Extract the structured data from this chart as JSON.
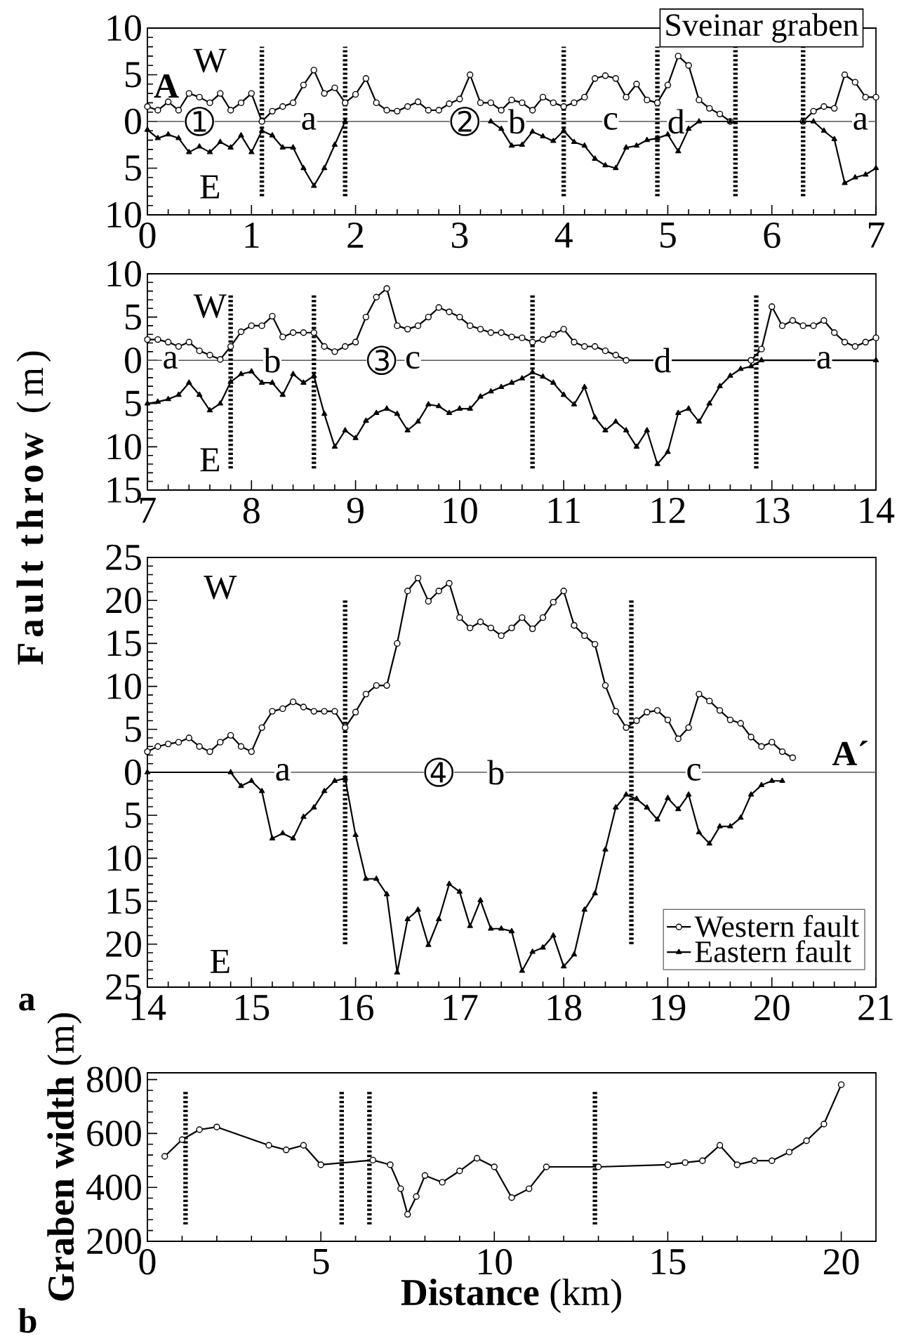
{
  "chart_data": [
    {
      "type": "line",
      "title": "Sveinar graben",
      "x": [
        0,
        0.1,
        0.2,
        0.3,
        0.4,
        0.5,
        0.6,
        0.7,
        0.8,
        0.9,
        1.0,
        1.1,
        1.2,
        1.3,
        1.4,
        1.5,
        1.6,
        1.7,
        1.8,
        1.9,
        2.0,
        2.1,
        2.2,
        2.3,
        2.4,
        2.5,
        2.6,
        2.7,
        2.8,
        2.9,
        3.0,
        3.1,
        3.2,
        3.3,
        3.4,
        3.5,
        3.6,
        3.7,
        3.8,
        3.9,
        4.0,
        4.1,
        4.2,
        4.3,
        4.4,
        4.5,
        4.6,
        4.7,
        4.8,
        4.9,
        5.0,
        5.1,
        5.2,
        5.3,
        5.4,
        5.5,
        5.6,
        6.3,
        6.4,
        6.5,
        6.6,
        6.7,
        6.8,
        6.9,
        7.0
      ],
      "series": [
        {
          "color": "#000000",
          "marker": "circle",
          "values": [
            1.6,
            1.2,
            2.1,
            1.2,
            3.0,
            2.6,
            2.0,
            3.0,
            1.2,
            2.0,
            3.0,
            0,
            1.1,
            1.6,
            2.0,
            3.9,
            5.5,
            3.0,
            3.6,
            2.0,
            2.9,
            4.6,
            2.0,
            1.2,
            1.1,
            1.6,
            2.1,
            1.2,
            1.2,
            1.9,
            2.4,
            5.0,
            2.0,
            2.0,
            1.2,
            2.3,
            2.0,
            1.2,
            2.6,
            2.0,
            1.6,
            2.0,
            2.6,
            4.6,
            4.9,
            4.6,
            2.6,
            4.0,
            2.3,
            2.0,
            3.9,
            7.0,
            6.0,
            2.3,
            1.4,
            0.8,
            0,
            0,
            1.1,
            1.6,
            1.4,
            5.0,
            4.2,
            2.6,
            2.6
          ]
        },
        {
          "color": "#000000",
          "marker": "triangle",
          "x": [
            0,
            0.1,
            0.2,
            0.3,
            0.4,
            0.5,
            0.6,
            0.7,
            0.8,
            0.9,
            1.0,
            1.1,
            1.2,
            1.3,
            1.4,
            1.5,
            1.6,
            1.7,
            1.8,
            1.9,
            2.6,
            3.3,
            3.4,
            3.5,
            3.6,
            3.7,
            3.8,
            3.9,
            4.0,
            4.1,
            4.2,
            4.3,
            4.4,
            4.5,
            4.6,
            4.7,
            4.8,
            4.9,
            5.0,
            5.1,
            5.2,
            5.3,
            5.6,
            6.3,
            6.4,
            6.5,
            6.6,
            6.7,
            6.8,
            6.9,
            7.0
          ],
          "values": [
            -0.9,
            -1.8,
            -1.4,
            -1.8,
            -3.3,
            -2.7,
            -3.3,
            -2.2,
            -2.8,
            -1.5,
            -3.3,
            -1.0,
            -1.5,
            -2.8,
            -2.8,
            -5.0,
            -6.9,
            -5.0,
            -2.5,
            0,
            null,
            0,
            -0.8,
            -2.6,
            -2.5,
            -1.1,
            -1.6,
            -2.1,
            -1.0,
            -2.2,
            -2.6,
            -4.0,
            -4.7,
            -5.0,
            -2.8,
            -2.6,
            -2.0,
            -1.8,
            -1.4,
            -3.2,
            -0.8,
            0,
            0,
            0,
            0,
            -1.0,
            -1.9,
            -6.6,
            -6.0,
            -5.7,
            -5.0
          ]
        }
      ],
      "xlim": [
        0,
        7
      ],
      "xticks": [
        0,
        1,
        2,
        3,
        4,
        5,
        6,
        7
      ],
      "ylim": [
        -10,
        10
      ],
      "yticks": [
        {
          "value": -10,
          "label": "10"
        },
        {
          "value": -5,
          "label": "5"
        },
        0,
        5,
        10
      ],
      "ref_lines": [
        {
          "axis": "y",
          "value": 0,
          "color": "#555555",
          "line_style": "solid"
        },
        {
          "axis": "x",
          "value": 1.1,
          "color": "#000000",
          "line_style": "dotted"
        },
        {
          "axis": "x",
          "value": 1.9,
          "color": "#000000",
          "line_style": "dotted"
        },
        {
          "axis": "x",
          "value": 4.0,
          "color": "#000000",
          "line_style": "dotted"
        },
        {
          "axis": "x",
          "value": 4.9,
          "color": "#000000",
          "line_style": "dotted"
        },
        {
          "axis": "x",
          "value": 5.65,
          "color": "#000000",
          "line_style": "dotted"
        },
        {
          "axis": "x",
          "value": 6.3,
          "color": "#000000",
          "line_style": "dotted"
        }
      ],
      "annotations": [
        "**A**",
        "W",
        "E",
        {
          "text": "➀",
          "x": 0.5,
          "y": 0
        },
        {
          "text": "a",
          "x": 1.55,
          "y": 0
        },
        {
          "text": "➁",
          "x": 3.05,
          "y": 0
        },
        {
          "text": "b",
          "x": 3.55,
          "y": 0
        },
        {
          "text": "c",
          "x": 4.45,
          "y": 0
        },
        {
          "text": "d",
          "x": 5.08,
          "y": 0
        },
        {
          "text": "a",
          "x": 6.85,
          "y": 0
        }
      ]
    },
    {
      "type": "line",
      "ylabel": "**Fault throw** (m)",
      "x": [
        7.0,
        7.1,
        7.2,
        7.3,
        7.4,
        7.5,
        7.6,
        7.7,
        7.8,
        7.9,
        8.0,
        8.1,
        8.2,
        8.3,
        8.4,
        8.5,
        8.6,
        8.7,
        8.8,
        8.9,
        9.0,
        9.1,
        9.2,
        9.3,
        9.4,
        9.5,
        9.6,
        9.7,
        9.8,
        9.9,
        10.0,
        10.1,
        10.2,
        10.3,
        10.4,
        10.5,
        10.6,
        10.7,
        10.8,
        10.9,
        11.0,
        11.1,
        11.2,
        11.3,
        11.4,
        11.5,
        11.6,
        12.8,
        12.9,
        13.0,
        13.1,
        13.2,
        13.3,
        13.4,
        13.5,
        13.6,
        13.7,
        13.8,
        13.9,
        14.0
      ],
      "series": [
        {
          "color": "#000000",
          "marker": "circle",
          "values": [
            2.4,
            2.4,
            2.1,
            1.6,
            2.1,
            1.1,
            0.6,
            0.1,
            1.6,
            3.3,
            4.0,
            4.0,
            5.1,
            2.7,
            3.2,
            3.2,
            3.2,
            1.6,
            1.0,
            1.6,
            2.1,
            5.0,
            7.3,
            8.3,
            4.0,
            3.6,
            4.0,
            5.0,
            6.1,
            5.6,
            5.0,
            4.0,
            3.6,
            3.2,
            3.2,
            2.7,
            2.6,
            2.1,
            2.4,
            3.0,
            3.6,
            2.1,
            1.6,
            1.6,
            1.1,
            0.6,
            0,
            0,
            1.3,
            6.2,
            4.0,
            4.6,
            4.0,
            4.0,
            4.6,
            3.2,
            2.1,
            1.6,
            2.1,
            2.6
          ]
        },
        {
          "color": "#000000",
          "marker": "triangle",
          "x": [
            7.0,
            7.1,
            7.2,
            7.3,
            7.4,
            7.5,
            7.6,
            7.7,
            7.8,
            7.9,
            8.0,
            8.1,
            8.2,
            8.3,
            8.4,
            8.5,
            8.6,
            8.7,
            8.8,
            8.9,
            9.0,
            9.1,
            9.2,
            9.3,
            9.4,
            9.5,
            9.6,
            9.7,
            9.8,
            9.9,
            10.0,
            10.1,
            10.2,
            10.3,
            10.4,
            10.5,
            10.6,
            10.7,
            10.8,
            10.9,
            11.0,
            11.1,
            11.2,
            11.3,
            11.4,
            11.5,
            11.6,
            11.7,
            11.8,
            11.9,
            12.0,
            12.1,
            12.2,
            12.3,
            12.4,
            12.5,
            12.6,
            12.7,
            12.8,
            12.9,
            14.0
          ],
          "values": [
            -5.0,
            -4.8,
            -4.5,
            -4.0,
            -2.6,
            -4.0,
            -5.8,
            -5.0,
            -2.5,
            -1.6,
            -1.3,
            -2.6,
            -2.6,
            -4.0,
            -1.6,
            -2.6,
            -1.8,
            -6.2,
            -10.0,
            -8.1,
            -9.0,
            -7.0,
            -6.1,
            -5.6,
            -6.2,
            -8.1,
            -7.1,
            -5.1,
            -5.3,
            -6.1,
            -5.6,
            -5.6,
            -4.2,
            -3.6,
            -3.1,
            -2.6,
            -2.1,
            -1.4,
            -1.9,
            -2.6,
            -4.0,
            -5.1,
            -3.1,
            -6.6,
            -8.1,
            -7.1,
            -8.1,
            -10.0,
            -8.1,
            -12.0,
            -10.6,
            -6.1,
            -5.6,
            -7.1,
            -5.0,
            -3.0,
            -1.8,
            -1.0,
            -0.7,
            0,
            0
          ]
        }
      ],
      "xlim": [
        7,
        14
      ],
      "xticks": [
        7,
        8,
        9,
        10,
        11,
        12,
        13,
        14
      ],
      "ylim": [
        -15,
        10
      ],
      "yticks": [
        {
          "value": -15,
          "label": "15"
        },
        {
          "value": -10,
          "label": "10"
        },
        {
          "value": -5,
          "label": "5"
        },
        0,
        5,
        10
      ],
      "ref_lines": [
        {
          "axis": "y",
          "value": 0,
          "color": "#555555",
          "line_style": "solid"
        },
        {
          "axis": "x",
          "value": 7.8,
          "color": "#000000",
          "line_style": "dotted"
        },
        {
          "axis": "x",
          "value": 8.6,
          "color": "#000000",
          "line_style": "dotted"
        },
        {
          "axis": "x",
          "value": 10.7,
          "color": "#000000",
          "line_style": "dotted"
        },
        {
          "axis": "x",
          "value": 12.85,
          "color": "#000000",
          "line_style": "dotted"
        }
      ],
      "annotations": [
        "W",
        "E",
        {
          "text": "a",
          "x": 7.22,
          "y": 0
        },
        {
          "text": "b",
          "x": 8.2,
          "y": 0
        },
        {
          "text": "➂",
          "x": 9.25,
          "y": 0
        },
        {
          "text": "c",
          "x": 9.55,
          "y": 0
        },
        {
          "text": "d",
          "x": 11.95,
          "y": 0
        },
        {
          "text": "a",
          "x": 13.5,
          "y": 0
        }
      ]
    },
    {
      "type": "line",
      "legend": "bottom right",
      "x": [
        14.0,
        14.1,
        14.2,
        14.3,
        14.4,
        14.5,
        14.6,
        14.7,
        14.8,
        14.9,
        15.0,
        15.1,
        15.2,
        15.3,
        15.4,
        15.5,
        15.6,
        15.7,
        15.8,
        15.9,
        16.0,
        16.1,
        16.2,
        16.3,
        16.4,
        16.5,
        16.6,
        16.7,
        16.8,
        16.9,
        17.0,
        17.1,
        17.2,
        17.3,
        17.4,
        17.5,
        17.6,
        17.7,
        17.8,
        17.9,
        18.0,
        18.1,
        18.2,
        18.3,
        18.4,
        18.5,
        18.6,
        18.7,
        18.8,
        18.9,
        19.0,
        19.1,
        19.2,
        19.3,
        19.4,
        19.5,
        19.6,
        19.7,
        19.8,
        19.9,
        20.0,
        20.1,
        20.2
      ],
      "series": [
        {
          "name": "Western fault",
          "color": "#000000",
          "marker": "circle",
          "values": [
            2.4,
            3.0,
            3.3,
            3.5,
            4.0,
            3.0,
            2.4,
            3.5,
            4.3,
            3.0,
            2.4,
            5.2,
            7.1,
            7.4,
            8.2,
            7.6,
            7.1,
            7.1,
            7.1,
            5.2,
            7.0,
            9.1,
            10.1,
            10.1,
            15.0,
            21.1,
            22.6,
            19.9,
            21.1,
            22.0,
            18.0,
            16.8,
            17.5,
            16.8,
            15.9,
            16.8,
            18.0,
            16.7,
            18.0,
            19.8,
            21.1,
            17.1,
            15.9,
            14.9,
            10.1,
            7.1,
            5.2,
            6.0,
            7.0,
            7.2,
            6.1,
            3.9,
            5.2,
            9.1,
            8.3,
            7.2,
            6.1,
            5.7,
            4.1,
            3.0,
            3.5,
            2.4,
            1.7
          ]
        },
        {
          "name": "Eastern fault",
          "color": "#000000",
          "marker": "triangle",
          "x": [
            14.0,
            14.8,
            14.9,
            15.0,
            15.1,
            15.2,
            15.3,
            15.4,
            15.5,
            15.6,
            15.7,
            15.8,
            15.9,
            16.0,
            16.1,
            16.2,
            16.3,
            16.4,
            16.5,
            16.6,
            16.7,
            16.8,
            16.9,
            17.0,
            17.1,
            17.2,
            17.3,
            17.4,
            17.5,
            17.6,
            17.7,
            17.8,
            17.9,
            18.0,
            18.1,
            18.2,
            18.3,
            18.4,
            18.5,
            18.6,
            18.7,
            18.8,
            18.9,
            19.0,
            19.1,
            19.2,
            19.3,
            19.4,
            19.5,
            19.6,
            19.7,
            19.8,
            19.9,
            20.0,
            20.1
          ],
          "values": [
            0,
            0,
            -1.6,
            -1.0,
            -2.2,
            -7.7,
            -7.1,
            -7.7,
            -5.2,
            -4.1,
            -2.2,
            -1.0,
            -0.7,
            -7.3,
            -12.4,
            -12.4,
            -14.2,
            -23.3,
            -17.1,
            -16.0,
            -20.1,
            -17.1,
            -13.0,
            -13.9,
            -17.9,
            -14.9,
            -18.2,
            -18.2,
            -18.5,
            -23.1,
            -20.9,
            -20.4,
            -19.0,
            -22.6,
            -21.2,
            -16.0,
            -14.1,
            -9.0,
            -4.1,
            -2.6,
            -3.1,
            -4.1,
            -5.5,
            -3.0,
            -4.3,
            -2.6,
            -7.0,
            -8.3,
            -6.3,
            -6.3,
            -5.3,
            -2.6,
            -1.5,
            -1.0,
            -1.0
          ]
        }
      ],
      "xlim": [
        14,
        21
      ],
      "xticks": [
        14,
        15,
        16,
        17,
        18,
        19,
        20,
        21
      ],
      "ylim": [
        -25,
        25
      ],
      "yticks": [
        {
          "value": -25,
          "label": "25"
        },
        {
          "value": -20,
          "label": "20"
        },
        {
          "value": -15,
          "label": "15"
        },
        {
          "value": -10,
          "label": "10"
        },
        {
          "value": -5,
          "label": "5"
        },
        0,
        5,
        10,
        15,
        20,
        25
      ],
      "ref_lines": [
        {
          "axis": "y",
          "value": 0,
          "color": "#555555",
          "line_style": "solid"
        },
        {
          "axis": "x",
          "value": 15.9,
          "color": "#000000",
          "line_style": "dotted"
        },
        {
          "axis": "x",
          "value": 18.65,
          "color": "#000000",
          "line_style": "dotted"
        }
      ],
      "annotations": [
        "W",
        "E",
        {
          "text": "a",
          "x": 15.3,
          "y": 0
        },
        {
          "text": "➃",
          "x": 16.8,
          "y": 0
        },
        {
          "text": "b",
          "x": 17.35,
          "y": 0
        },
        {
          "text": "c",
          "x": 19.25,
          "y": 0
        },
        "**A´**",
        "**a**"
      ]
    },
    {
      "type": "line",
      "xlabel": "**Distance** (km)",
      "ylabel": "**Graben width** (m)",
      "x": [
        0.5,
        1,
        1.5,
        2,
        3.5,
        4,
        4.5,
        5,
        6.5,
        7,
        7.3,
        7.5,
        7.75,
        8,
        8.5,
        9,
        9.5,
        10,
        10.5,
        11,
        11.5,
        13,
        15,
        15.5,
        16,
        16.5,
        17,
        17.5,
        18,
        18.5,
        19,
        19.5,
        20
      ],
      "series": [
        {
          "color": "#000000",
          "marker": "circle",
          "values": [
            515,
            577,
            614,
            624,
            556,
            539,
            556,
            484,
            501,
            484,
            395,
            300,
            366,
            444,
            419,
            461,
            508,
            476,
            362,
            395,
            476,
            476,
            484,
            492,
            499,
            556,
            484,
            499,
            499,
            531,
            573,
            635,
            781
          ]
        }
      ],
      "xlim": [
        0,
        21
      ],
      "xticks": [
        0,
        5,
        10,
        15,
        20
      ],
      "ylim": [
        200,
        825
      ],
      "yticks": [
        200,
        400,
        600,
        800
      ],
      "ref_lines": [
        {
          "axis": "x",
          "value": 1.1,
          "color": "#000000",
          "line_style": "dotted"
        },
        {
          "axis": "x",
          "value": 5.6,
          "color": "#000000",
          "line_style": "dotted"
        },
        {
          "axis": "x",
          "value": 6.4,
          "color": "#000000",
          "line_style": "dotted"
        },
        {
          "axis": "x",
          "value": 12.9,
          "color": "#000000",
          "line_style": "dotted"
        }
      ],
      "annotations": [
        "**b**"
      ]
    }
  ]
}
